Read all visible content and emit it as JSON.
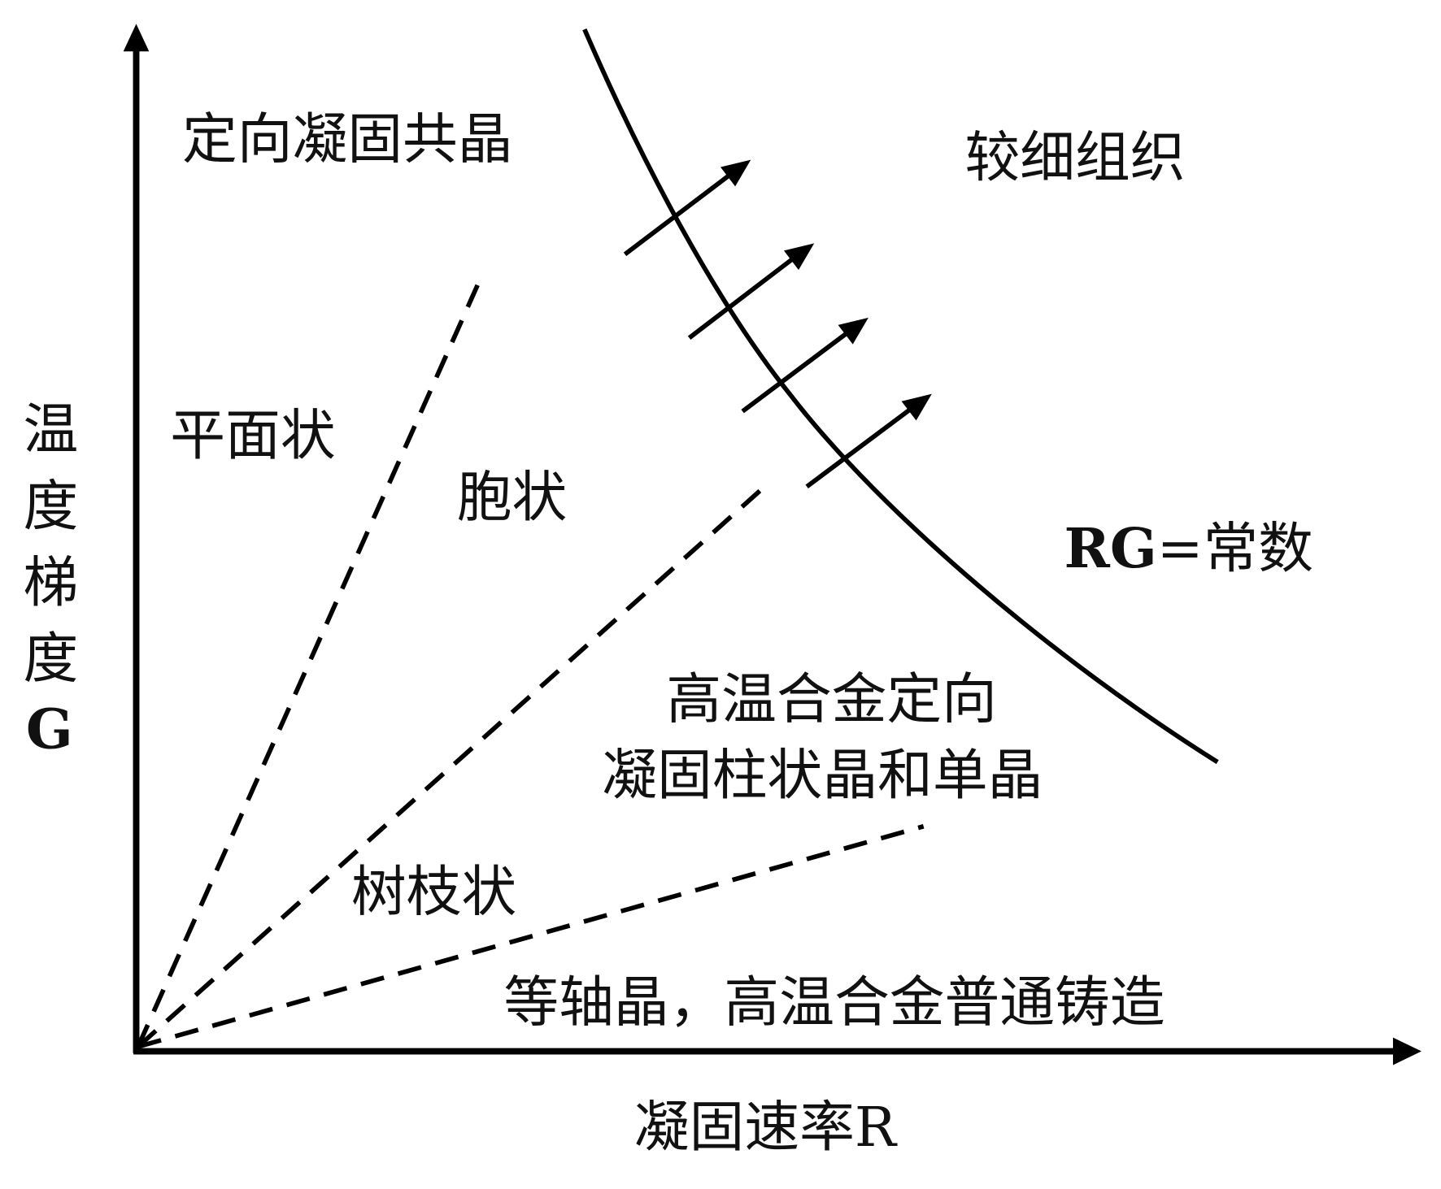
{
  "diagram": {
    "y_axis_label": [
      "温",
      "度",
      "梯",
      "度",
      "G"
    ],
    "x_axis_label": "凝固速率R",
    "regions": {
      "eutectic": "定向凝固共晶",
      "finer": "较细组织",
      "planar": "平面状",
      "cellular": "胞状",
      "dendritic": "树枝状",
      "columnar_line1": "高温合金定向",
      "columnar_line2": "凝固柱状晶和单晶",
      "equiaxed": "等轴晶，高温合金普通铸造"
    },
    "curve_label_rg": "RG",
    "curve_label_rest": "=常数",
    "line_color": "#000000"
  }
}
